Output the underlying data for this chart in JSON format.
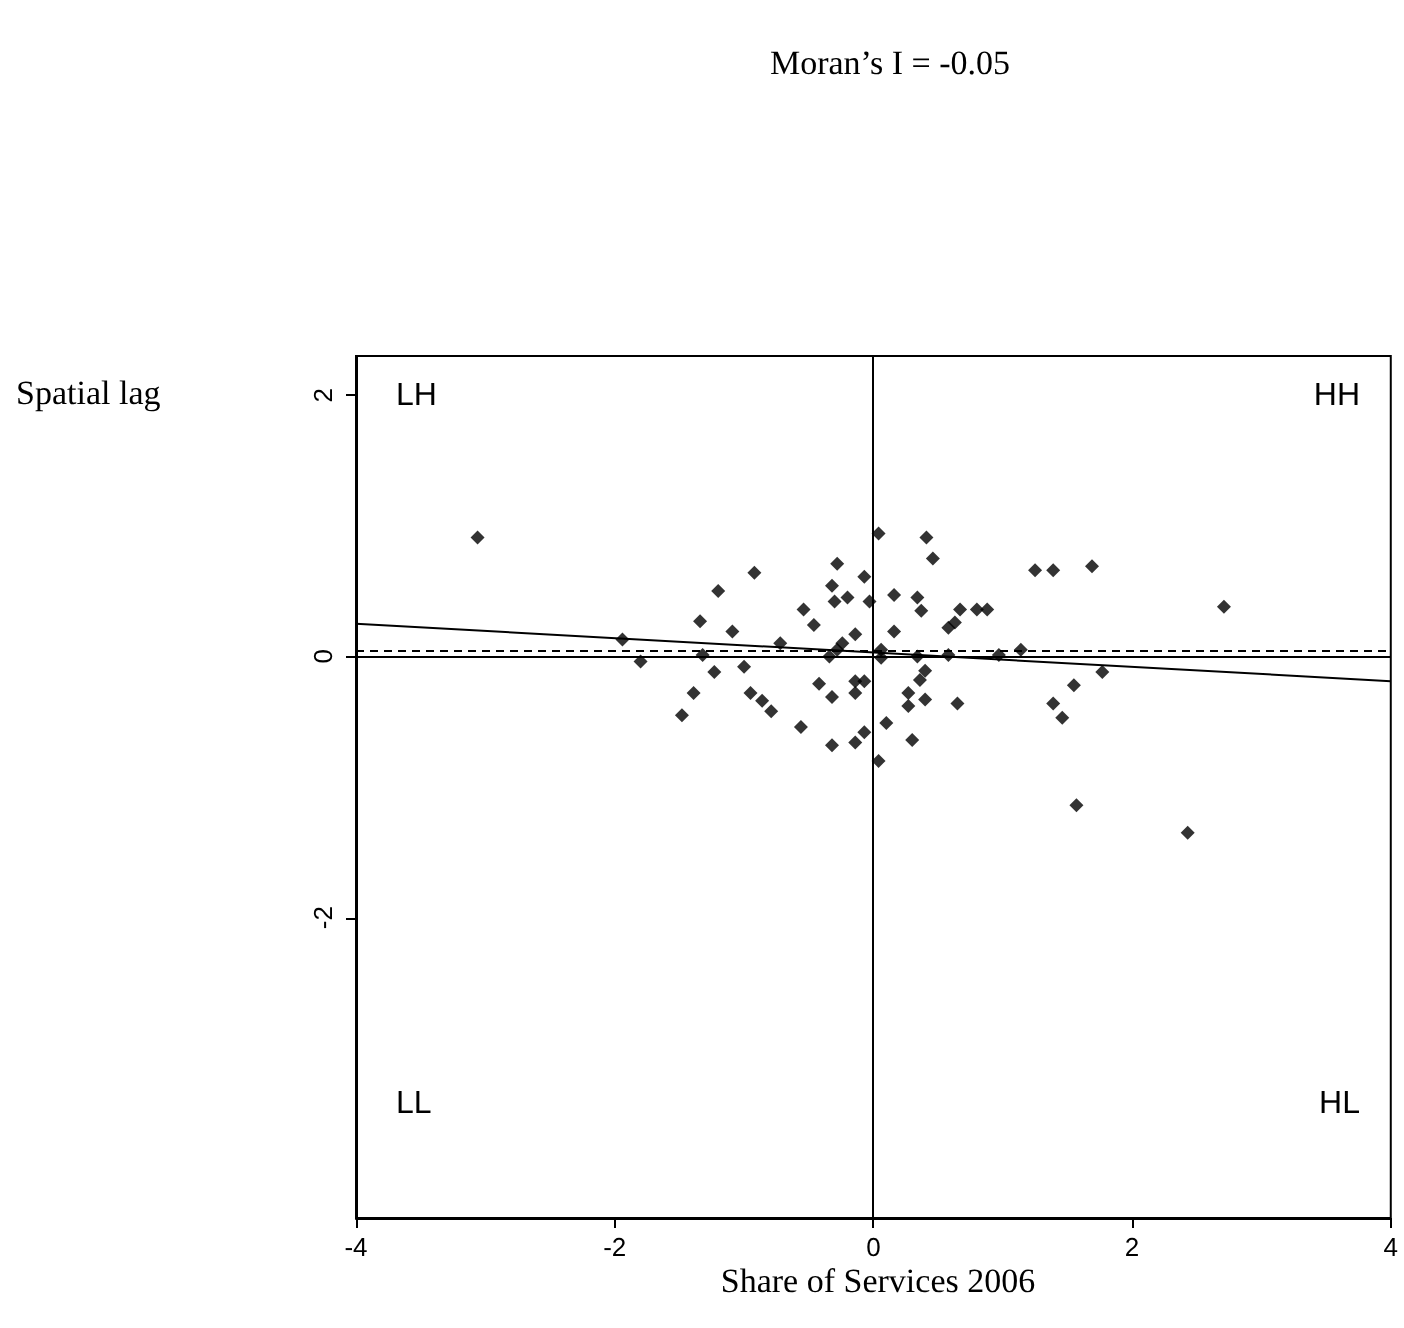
{
  "chart_data": {
    "type": "scatter",
    "title": "Moran’s I = -0.05",
    "xlabel": "Share of Services 2006",
    "ylabel": "Spatial lag",
    "annotations": [
      "LH",
      "HH",
      "LL",
      "HL"
    ],
    "xlim": [
      -4,
      4
    ],
    "xticks": [
      -4,
      -2,
      0,
      2,
      4
    ],
    "ylim": [
      -4.3,
      2.3
    ],
    "yticks": [
      -2,
      0,
      2
    ],
    "grid": false,
    "marker": "diamond",
    "ref_lines": [
      {
        "axis": "x",
        "value": 0,
        "label": null,
        "color": "#000000",
        "line_style": "solid"
      },
      {
        "axis": "y",
        "value": 0,
        "label": null,
        "color": "#000000",
        "line_style": "solid"
      },
      {
        "axis": "y",
        "value": 0.05,
        "label": null,
        "color": "#000000",
        "line_style": "dashed"
      }
    ],
    "series": [
      {
        "color": "#000000",
        "x": [
          -3.06,
          0.04,
          0.41,
          0.46,
          -0.28,
          -0.92,
          -0.07,
          -0.32,
          -1.2,
          1.25,
          1.39,
          1.69,
          2.71,
          -0.3,
          -0.2,
          -0.03,
          0.16,
          0.34,
          0.37,
          0.67,
          0.8,
          0.88,
          -0.54,
          -0.46,
          -1.34,
          -1.09,
          -1.94,
          -0.14,
          0.16,
          0.58,
          0.63,
          -0.72,
          -0.24,
          -0.28,
          -0.34,
          0.06,
          0.06,
          0.34,
          0.58,
          0.97,
          1.14,
          -1.32,
          -1.8,
          -1.23,
          -1.0,
          1.77,
          1.55,
          -1.39,
          -0.95,
          -0.86,
          -0.79,
          -1.48,
          -0.42,
          -0.32,
          -0.14,
          -0.07,
          -0.14,
          0.27,
          0.4,
          0.36,
          0.4,
          0.27,
          0.65,
          1.39,
          1.46,
          -0.56,
          0.1,
          -0.32,
          -0.14,
          -0.07,
          0.3,
          0.04,
          1.57,
          2.43
        ],
        "values": [
          0.91,
          0.94,
          0.91,
          0.75,
          0.71,
          0.64,
          0.61,
          0.54,
          0.5,
          0.66,
          0.66,
          0.69,
          0.38,
          0.42,
          0.45,
          0.42,
          0.47,
          0.45,
          0.35,
          0.36,
          0.36,
          0.36,
          0.36,
          0.24,
          0.27,
          0.19,
          0.13,
          0.17,
          0.19,
          0.22,
          0.26,
          0.1,
          0.1,
          0.05,
          0.0,
          0.05,
          -0.01,
          0.0,
          0.01,
          0.01,
          0.05,
          0.01,
          -0.04,
          -0.12,
          -0.08,
          -0.12,
          -0.22,
          -0.28,
          -0.28,
          -0.34,
          -0.42,
          -0.45,
          -0.21,
          -0.31,
          -0.19,
          -0.19,
          -0.28,
          -0.28,
          -0.11,
          -0.18,
          -0.33,
          -0.38,
          -0.36,
          -0.36,
          -0.47,
          -0.54,
          -0.51,
          -0.68,
          -0.66,
          -0.58,
          -0.64,
          -0.8,
          -1.14,
          -1.35
        ]
      },
      {
        "type": "line",
        "color": "#000000",
        "marker": "none",
        "x": [
          -4,
          4
        ],
        "values": [
          0.25,
          -0.19
        ]
      }
    ]
  }
}
